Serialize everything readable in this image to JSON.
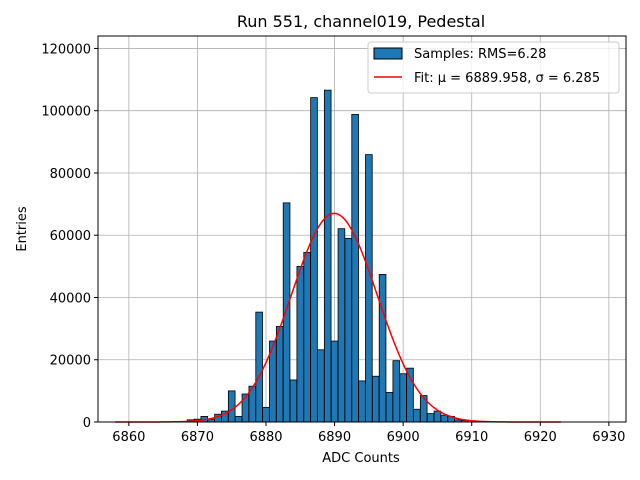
{
  "chart_data": {
    "type": "bar",
    "title": "Run 551, channel019, Pedestal",
    "xlabel": "ADC Counts",
    "ylabel": "Entries",
    "xlim": [
      6855.5,
      6932.5
    ],
    "ylim": [
      0,
      124000
    ],
    "xticks": [
      6860,
      6870,
      6880,
      6890,
      6900,
      6910,
      6920,
      6930
    ],
    "yticks": [
      0,
      20000,
      40000,
      60000,
      80000,
      100000,
      120000
    ],
    "grid": true,
    "legend_position": "top-right",
    "bin_width": 0.98,
    "bar_color": "#1f77b4",
    "fit_color": "#ff0000",
    "bins": {
      "x": [
        6869,
        6870,
        6871,
        6872,
        6873,
        6874,
        6875,
        6876,
        6877,
        6878,
        6879,
        6880,
        6881,
        6882,
        6883,
        6884,
        6885,
        6886,
        6887,
        6888,
        6889,
        6890,
        6891,
        6892,
        6893,
        6894,
        6895,
        6896,
        6897,
        6898,
        6899,
        6900,
        6901,
        6902,
        6903,
        6904,
        6905,
        6906,
        6907,
        6908,
        6909
      ],
      "values": [
        700,
        900,
        1800,
        900,
        2500,
        3500,
        10000,
        1800,
        9000,
        11500,
        35300,
        4700,
        26000,
        30700,
        70400,
        13500,
        50000,
        54500,
        104200,
        23200,
        106600,
        26000,
        62100,
        59000,
        98800,
        13200,
        85900,
        14700,
        47400,
        9500,
        19700,
        15500,
        17300,
        4100,
        8500,
        2700,
        3500,
        2200,
        1800,
        700,
        500
      ]
    },
    "fit": {
      "mu": 6889.958,
      "sigma": 6.285,
      "amplitude": 67000,
      "x_range": [
        6858,
        6923
      ]
    },
    "legend": [
      {
        "kind": "bar",
        "label": "Samples: RMS=6.28"
      },
      {
        "kind": "line",
        "label": "Fit: μ = 6889.958, σ = 6.285"
      }
    ]
  }
}
